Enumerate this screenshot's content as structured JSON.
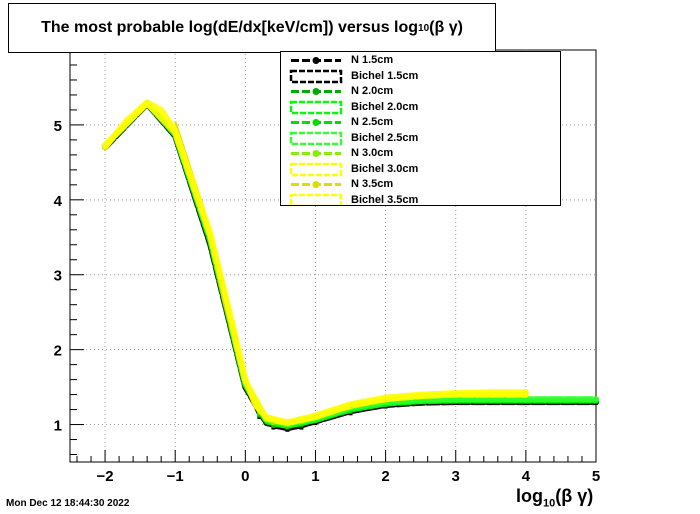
{
  "title_prefix": "The most probable log(dE/dx[keV/cm]) versus log",
  "title_sub": "10",
  "title_suffix": "(β γ)",
  "xtitle_main": "log",
  "xtitle_sub": "10",
  "xtitle_suffix": "(β γ)",
  "datestamp": "Mon Dec 12 18:44:30 2022",
  "chart_data": {
    "type": "line",
    "xlim": [
      -2.5,
      5
    ],
    "ylim": [
      0.5,
      6
    ],
    "x_ticks": [
      "−2",
      "−1",
      "0",
      "1",
      "2",
      "3",
      "4",
      "5"
    ],
    "y_ticks": [
      "1",
      "2",
      "3",
      "4",
      "5"
    ],
    "grid": true,
    "legend_position": "top-right",
    "series": [
      {
        "name": "N 1.5cm",
        "color": "#000000",
        "style": "marker",
        "points": [
          [
            0.0,
            1.5
          ],
          [
            0.2,
            1.1
          ],
          [
            0.4,
            0.96
          ],
          [
            0.6,
            0.93
          ],
          [
            0.8,
            0.96
          ],
          [
            1.0,
            1.02
          ],
          [
            1.5,
            1.15
          ],
          [
            2.0,
            1.24
          ],
          [
            2.5,
            1.28
          ],
          [
            3.0,
            1.29
          ],
          [
            3.5,
            1.29
          ],
          [
            4.0,
            1.29
          ],
          [
            5.0,
            1.29
          ]
        ]
      },
      {
        "name": "Bichel 1.5cm",
        "color": "#000000",
        "style": "band",
        "points": [
          [
            -2.0,
            4.7
          ],
          [
            -1.4,
            5.28
          ],
          [
            -1.0,
            4.85
          ],
          [
            -0.5,
            3.4
          ],
          [
            0.0,
            1.5
          ],
          [
            0.3,
            1.02
          ],
          [
            0.6,
            0.95
          ],
          [
            1.0,
            1.04
          ],
          [
            1.5,
            1.18
          ],
          [
            2.0,
            1.26
          ],
          [
            2.5,
            1.29
          ],
          [
            3.0,
            1.3
          ],
          [
            4.0,
            1.3
          ],
          [
            5.0,
            1.3
          ]
        ]
      },
      {
        "name": "N 2.0cm",
        "color": "#00aa00",
        "style": "marker",
        "points": [
          [
            0.0,
            1.52
          ],
          [
            0.2,
            1.12
          ],
          [
            0.4,
            0.98
          ],
          [
            0.6,
            0.96
          ],
          [
            0.8,
            0.99
          ],
          [
            1.0,
            1.05
          ],
          [
            1.5,
            1.17
          ],
          [
            2.0,
            1.26
          ],
          [
            2.5,
            1.3
          ],
          [
            3.0,
            1.31
          ],
          [
            3.5,
            1.31
          ],
          [
            4.0,
            1.31
          ],
          [
            5.0,
            1.31
          ]
        ]
      },
      {
        "name": "Bichel 2.0cm",
        "color": "#00ff00",
        "style": "band",
        "points": [
          [
            -2.0,
            4.72
          ],
          [
            -1.4,
            5.29
          ],
          [
            -1.0,
            4.87
          ],
          [
            -0.5,
            3.45
          ],
          [
            0.0,
            1.53
          ],
          [
            0.3,
            1.04
          ],
          [
            0.6,
            0.98
          ],
          [
            1.0,
            1.06
          ],
          [
            1.5,
            1.2
          ],
          [
            2.0,
            1.28
          ],
          [
            2.5,
            1.31
          ],
          [
            3.0,
            1.32
          ],
          [
            4.0,
            1.32
          ],
          [
            5.0,
            1.32
          ]
        ]
      },
      {
        "name": "N 2.5cm",
        "color": "#00dd00",
        "style": "marker",
        "points": [
          [
            0.0,
            1.54
          ],
          [
            0.2,
            1.14
          ],
          [
            0.4,
            1.0
          ],
          [
            0.6,
            0.98
          ],
          [
            0.8,
            1.01
          ],
          [
            1.0,
            1.07
          ],
          [
            1.5,
            1.19
          ],
          [
            2.0,
            1.28
          ],
          [
            2.5,
            1.32
          ],
          [
            3.0,
            1.33
          ],
          [
            3.5,
            1.33
          ],
          [
            4.0,
            1.33
          ],
          [
            5.0,
            1.33
          ]
        ]
      },
      {
        "name": "Bichel 2.5cm",
        "color": "#33ff33",
        "style": "band",
        "points": [
          [
            -2.0,
            4.72
          ],
          [
            -1.4,
            5.29
          ],
          [
            -1.0,
            4.88
          ],
          [
            -0.5,
            3.48
          ],
          [
            0.0,
            1.55
          ],
          [
            0.3,
            1.06
          ],
          [
            0.6,
            1.0
          ],
          [
            1.0,
            1.08
          ],
          [
            1.5,
            1.22
          ],
          [
            2.0,
            1.3
          ],
          [
            2.5,
            1.33
          ],
          [
            3.0,
            1.34
          ],
          [
            4.0,
            1.34
          ],
          [
            5.0,
            1.34
          ]
        ]
      },
      {
        "name": "N 3.0cm",
        "color": "#88ee00",
        "style": "marker",
        "points": [
          [
            0.0,
            1.56
          ],
          [
            0.2,
            1.16
          ],
          [
            0.4,
            1.02
          ],
          [
            0.6,
            1.0
          ],
          [
            0.8,
            1.03
          ],
          [
            1.0,
            1.09
          ],
          [
            1.5,
            1.22
          ],
          [
            2.0,
            1.31
          ],
          [
            2.5,
            1.36
          ],
          [
            3.0,
            1.38
          ],
          [
            3.5,
            1.38
          ],
          [
            4.0,
            1.38
          ]
        ]
      },
      {
        "name": "Bichel 3.0cm",
        "color": "#ffff00",
        "style": "band",
        "points": [
          [
            -2.0,
            4.73
          ],
          [
            -1.4,
            5.29
          ],
          [
            -1.0,
            4.9
          ],
          [
            -0.5,
            3.52
          ],
          [
            0.0,
            1.58
          ],
          [
            0.3,
            1.08
          ],
          [
            0.6,
            1.02
          ],
          [
            1.0,
            1.1
          ],
          [
            1.5,
            1.25
          ],
          [
            2.0,
            1.34
          ],
          [
            2.5,
            1.38
          ],
          [
            3.0,
            1.4
          ],
          [
            4.0,
            1.4
          ]
        ]
      },
      {
        "name": "N 3.5cm",
        "color": "#dddd00",
        "style": "marker",
        "points": [
          [
            -1.0,
            5.05
          ],
          [
            -0.6,
            3.9
          ],
          [
            -0.3,
            2.6
          ],
          [
            0.0,
            1.6
          ],
          [
            0.2,
            1.2
          ],
          [
            0.4,
            1.05
          ],
          [
            0.6,
            1.02
          ],
          [
            0.8,
            1.06
          ],
          [
            1.0,
            1.12
          ],
          [
            1.5,
            1.25
          ],
          [
            2.0,
            1.34
          ],
          [
            2.5,
            1.39
          ],
          [
            3.0,
            1.41
          ],
          [
            3.5,
            1.42
          ],
          [
            4.0,
            1.42
          ]
        ]
      },
      {
        "name": "Bichel 3.5cm",
        "color": "#ffff00",
        "style": "band",
        "points": [
          [
            -2.0,
            4.7
          ],
          [
            -1.7,
            5.05
          ],
          [
            -1.4,
            5.3
          ],
          [
            -1.2,
            5.2
          ],
          [
            -1.0,
            4.92
          ],
          [
            -0.7,
            4.1
          ],
          [
            -0.5,
            3.55
          ],
          [
            -0.2,
            2.4
          ],
          [
            0.0,
            1.6
          ],
          [
            0.15,
            1.25
          ],
          [
            0.3,
            1.1
          ],
          [
            0.6,
            1.03
          ],
          [
            1.0,
            1.12
          ],
          [
            1.5,
            1.27
          ],
          [
            2.0,
            1.36
          ],
          [
            2.5,
            1.4
          ],
          [
            3.0,
            1.42
          ],
          [
            3.5,
            1.43
          ],
          [
            4.0,
            1.43
          ]
        ]
      }
    ]
  }
}
